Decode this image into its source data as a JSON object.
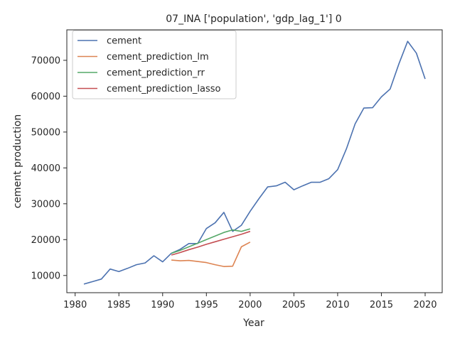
{
  "chart_data": {
    "type": "line",
    "title": "07_INA ['population', 'gdp_lag_1'] 0",
    "xlabel": "Year",
    "ylabel": "cement production",
    "xlim": [
      1979.05,
      2021.95
    ],
    "ylim": [
      5200,
      78500
    ],
    "xticks": [
      1980,
      1985,
      1990,
      1995,
      2000,
      2005,
      2010,
      2015,
      2020
    ],
    "yticks": [
      10000,
      20000,
      30000,
      40000,
      50000,
      60000,
      70000
    ],
    "grid": false,
    "legend_position": "top-left",
    "series": [
      {
        "name": "cement",
        "color": "#4c72b0",
        "x": [
          1981,
          1982,
          1983,
          1984,
          1985,
          1986,
          1987,
          1988,
          1989,
          1990,
          1991,
          1992,
          1993,
          1994,
          1995,
          1996,
          1997,
          1998,
          1999,
          2000,
          2001,
          2002,
          2003,
          2004,
          2005,
          2006,
          2007,
          2008,
          2009,
          2010,
          2011,
          2012,
          2013,
          2014,
          2015,
          2016,
          2017,
          2018,
          2019,
          2020
        ],
        "y": [
          7600,
          8300,
          9000,
          11800,
          11100,
          12000,
          13000,
          13500,
          15500,
          13800,
          16200,
          17300,
          18900,
          18900,
          23100,
          24700,
          27600,
          22300,
          24000,
          27900,
          31400,
          34700,
          35000,
          36000,
          33900,
          35000,
          36000,
          36000,
          37000,
          39500,
          45300,
          52300,
          56700,
          56800,
          59800,
          62000,
          69000,
          75300,
          72000,
          64800
        ]
      },
      {
        "name": "cement_prediction_lm",
        "color": "#dd8452",
        "x": [
          1991,
          1992,
          1993,
          1994,
          1995,
          1996,
          1997,
          1998,
          1999,
          2000
        ],
        "y": [
          14300,
          14100,
          14200,
          13900,
          13600,
          13000,
          12500,
          12600,
          18000,
          19300
        ]
      },
      {
        "name": "cement_prediction_rr",
        "color": "#55a868",
        "x": [
          1991,
          1992,
          1993,
          1994,
          1995,
          1996,
          1997,
          1998,
          1999,
          2000
        ],
        "y": [
          16200,
          17000,
          18000,
          19000,
          20000,
          21000,
          22000,
          22700,
          22300,
          23000
        ]
      },
      {
        "name": "cement_prediction_lasso",
        "color": "#c44e52",
        "x": [
          1991,
          1992,
          1993,
          1994,
          1995,
          1996,
          1997,
          1998,
          1999,
          2000
        ],
        "y": [
          15700,
          16400,
          17200,
          17900,
          18700,
          19400,
          20100,
          20800,
          21500,
          22300
        ]
      }
    ]
  }
}
